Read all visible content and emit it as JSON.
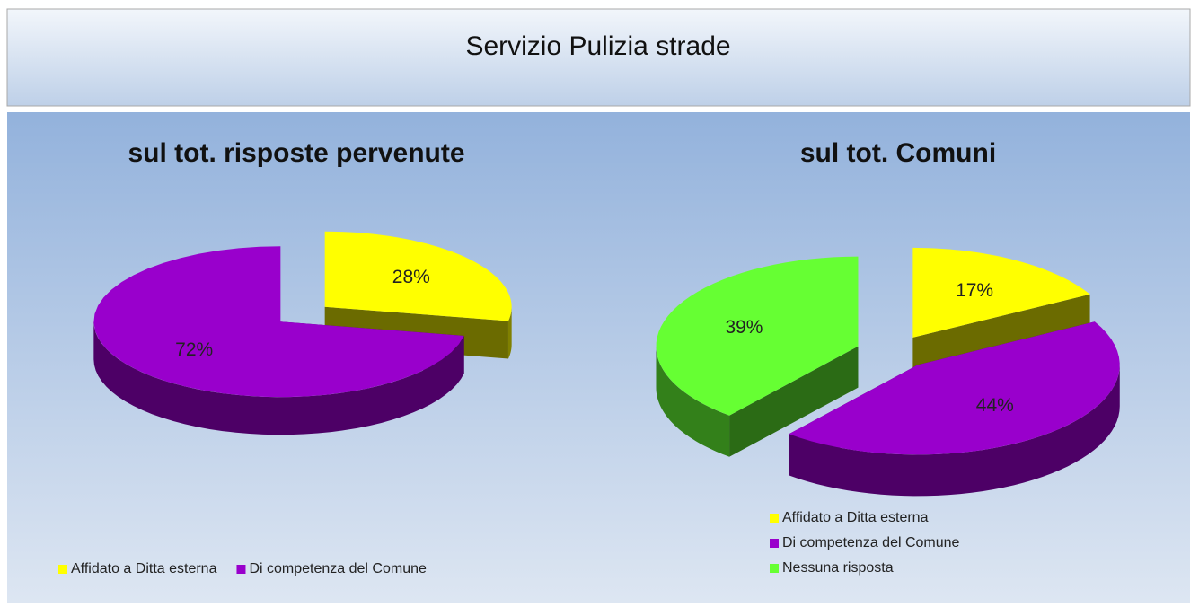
{
  "header": {
    "title": "Servizio Pulizia strade"
  },
  "chart_data": [
    {
      "type": "pie",
      "title": "sul tot. risposte pervenute",
      "categories": [
        "Affidato a Ditta esterna",
        "Di competenza del Comune"
      ],
      "values": [
        28,
        72
      ],
      "value_labels": [
        "28%",
        "72%"
      ],
      "colors": [
        "#ffff00",
        "#9900cc"
      ],
      "legend": "bottom",
      "legend_orientation": "horizontal"
    },
    {
      "type": "pie",
      "title": "sul tot. Comuni",
      "categories": [
        "Affidato a Ditta esterna",
        "Di competenza del Comune",
        "Nessuna risposta"
      ],
      "values": [
        17,
        44,
        39
      ],
      "value_labels": [
        "17%",
        "44%",
        "39%"
      ],
      "colors": [
        "#ffff00",
        "#9900cc",
        "#66ff33"
      ],
      "legend": "bottom",
      "legend_orientation": "vertical"
    }
  ]
}
